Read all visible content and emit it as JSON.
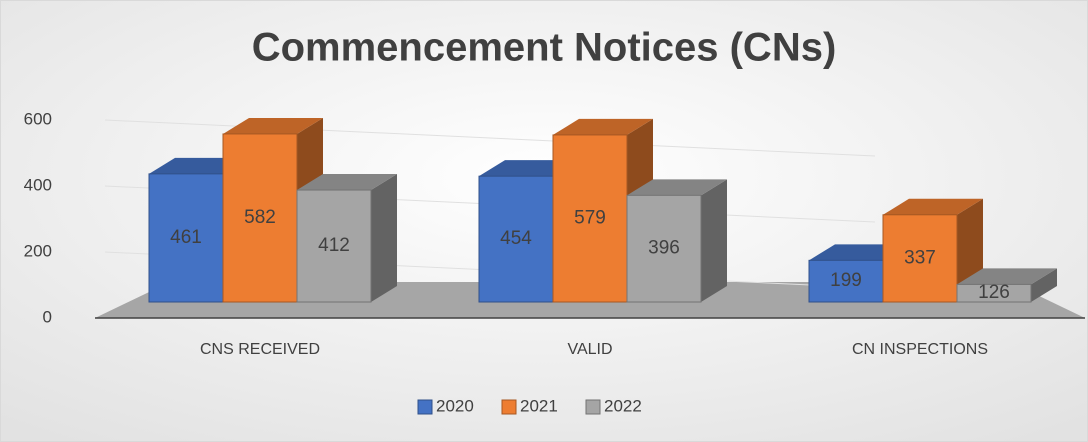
{
  "chart_data": {
    "type": "bar3d",
    "title": "Commencement Notices (CNs)",
    "categories": [
      "CNS RECEIVED",
      "VALID",
      "CN INSPECTIONS"
    ],
    "series": [
      {
        "name": "2020",
        "color": "#4472c4",
        "values": [
          461,
          454,
          199
        ]
      },
      {
        "name": "2021",
        "color": "#ed7d31",
        "values": [
          582,
          579,
          337
        ]
      },
      {
        "name": "2022",
        "color": "#a5a5a5",
        "values": [
          412,
          396,
          126
        ]
      }
    ],
    "ylim": [
      0,
      600
    ],
    "yticks": [
      0,
      200,
      400,
      600
    ],
    "grid": true,
    "legend": "bottom"
  }
}
